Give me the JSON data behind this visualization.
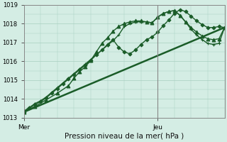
{
  "title": "Pression niveau de la mer( hPa )",
  "background_color": "#d4ede4",
  "grid_color": "#a8cfc0",
  "line_color": "#1a5c28",
  "ylim": [
    1013,
    1019
  ],
  "yticks": [
    1013,
    1014,
    1015,
    1016,
    1017,
    1018,
    1019
  ],
  "xlim": [
    0,
    72
  ],
  "vline_jeu": 48,
  "series": [
    {
      "x": [
        0,
        2,
        4,
        6,
        8,
        10,
        12,
        14,
        16,
        18,
        20,
        22,
        24,
        26,
        28,
        30,
        32,
        34,
        36,
        38,
        40,
        42,
        44,
        46,
        48,
        50,
        52,
        54,
        56,
        58,
        60,
        62,
        64,
        66,
        68,
        70,
        72
      ],
      "y": [
        1013.35,
        1013.55,
        1013.75,
        1013.9,
        1014.1,
        1014.35,
        1014.6,
        1014.85,
        1015.1,
        1015.35,
        1015.6,
        1015.85,
        1016.1,
        1016.35,
        1016.6,
        1016.85,
        1017.1,
        1017.4,
        1017.85,
        1018.0,
        1018.1,
        1018.1,
        1018.1,
        1018.05,
        1018.35,
        1018.55,
        1018.65,
        1018.7,
        1018.45,
        1018.1,
        1017.7,
        1017.4,
        1017.15,
        1016.95,
        1016.9,
        1016.95,
        1017.8
      ],
      "marker": "+",
      "markersize": 3.5,
      "lw": 1.0
    },
    {
      "x": [
        0,
        2,
        4,
        6,
        8,
        10,
        12,
        14,
        16,
        18,
        20,
        22,
        24,
        26,
        28,
        30,
        32,
        34,
        36,
        38,
        40,
        42,
        44,
        46,
        48,
        50,
        52,
        54,
        56,
        58,
        60,
        62,
        64,
        66,
        68,
        70,
        72
      ],
      "y": [
        1013.3,
        1013.5,
        1013.7,
        1013.85,
        1014.05,
        1014.3,
        1014.55,
        1014.8,
        1015.05,
        1015.3,
        1015.55,
        1015.8,
        1016.05,
        1016.35,
        1016.6,
        1016.9,
        1017.15,
        1016.75,
        1016.5,
        1016.4,
        1016.6,
        1016.9,
        1017.15,
        1017.3,
        1017.55,
        1017.9,
        1018.2,
        1018.55,
        1018.75,
        1018.65,
        1018.4,
        1018.15,
        1017.95,
        1017.8,
        1017.8,
        1017.85,
        1017.8
      ],
      "marker": "D",
      "markersize": 2.5,
      "lw": 1.0
    },
    {
      "x": [
        0,
        4,
        8,
        12,
        16,
        18,
        20,
        22,
        24,
        26,
        28,
        30,
        32,
        34,
        36,
        38,
        40,
        42,
        44,
        46,
        48,
        50,
        52,
        54,
        56,
        58,
        60,
        62,
        64,
        66,
        68,
        70,
        72
      ],
      "y": [
        1013.3,
        1013.6,
        1013.95,
        1014.3,
        1014.7,
        1015.1,
        1015.45,
        1015.7,
        1016.05,
        1016.5,
        1016.95,
        1017.25,
        1017.6,
        1017.85,
        1018.0,
        1018.1,
        1018.15,
        1018.15,
        1018.1,
        1018.05,
        1018.35,
        1018.55,
        1018.65,
        1018.7,
        1018.45,
        1018.1,
        1017.8,
        1017.55,
        1017.35,
        1017.2,
        1017.15,
        1017.2,
        1017.8
      ],
      "marker": "^",
      "markersize": 3.5,
      "lw": 1.0
    },
    {
      "x": [
        0,
        72
      ],
      "y": [
        1013.3,
        1017.8
      ],
      "marker": null,
      "markersize": 0,
      "lw": 1.8
    }
  ]
}
